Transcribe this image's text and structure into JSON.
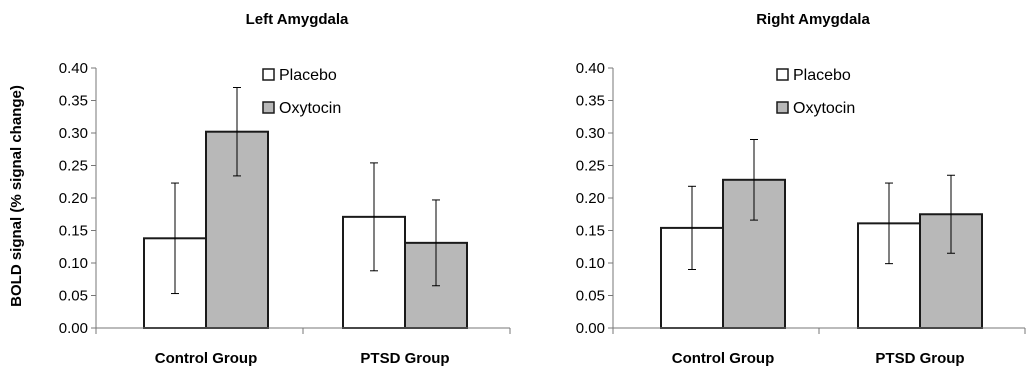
{
  "chart_data": [
    {
      "type": "bar",
      "title": "Left Amygdala",
      "ylabel": "BOLD signal (% signal change)",
      "xlabel": "",
      "categories": [
        "Control Group",
        "PTSD Group"
      ],
      "series": [
        {
          "name": "Placebo",
          "color": "#ffffff",
          "values": [
            0.138,
            0.171
          ],
          "error": [
            0.085,
            0.083
          ]
        },
        {
          "name": "Oxytocin",
          "color": "#b8b8b8",
          "values": [
            0.302,
            0.131
          ],
          "error": [
            0.068,
            0.066
          ]
        }
      ],
      "ylim": [
        0,
        0.4
      ],
      "yticks": [
        "0.00",
        "0.05",
        "0.10",
        "0.15",
        "0.20",
        "0.25",
        "0.30",
        "0.35",
        "0.40"
      ],
      "legend_position": "top-right",
      "grid": false
    },
    {
      "type": "bar",
      "title": "Right Amygdala",
      "ylabel": "",
      "xlabel": "",
      "categories": [
        "Control Group",
        "PTSD Group"
      ],
      "series": [
        {
          "name": "Placebo",
          "color": "#ffffff",
          "values": [
            0.154,
            0.161
          ],
          "error": [
            0.064,
            0.062
          ]
        },
        {
          "name": "Oxytocin",
          "color": "#b8b8b8",
          "values": [
            0.228,
            0.175
          ],
          "error": [
            0.062,
            0.06
          ]
        }
      ],
      "ylim": [
        0,
        0.4
      ],
      "yticks": [
        "0.00",
        "0.05",
        "0.10",
        "0.15",
        "0.20",
        "0.25",
        "0.30",
        "0.35",
        "0.40"
      ],
      "legend_position": "top-right",
      "grid": false
    }
  ]
}
